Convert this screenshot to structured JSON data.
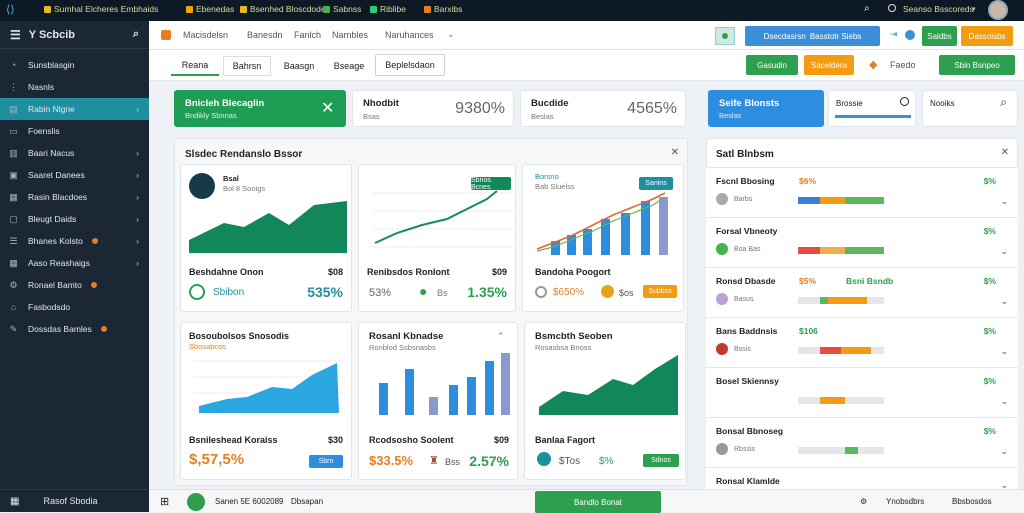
{
  "topbar": {
    "tabs": [
      {
        "label": "Sumhal Elcheres Embhaids",
        "color": "#e8b923"
      },
      {
        "label": "Ebenedas",
        "color": "#f0a500"
      },
      {
        "label": "Bsenhed Bloscdodes",
        "color": "#e8b923"
      },
      {
        "label": "Sabnss",
        "color": "#48b04a"
      },
      {
        "label": "Riblibe",
        "color": "#2ecc71"
      },
      {
        "label": "Barxibs",
        "color": "#e67e22"
      }
    ],
    "user_label": "Seanso Bsscoreds"
  },
  "sidebar": {
    "brand": "Y Scbcib",
    "items": [
      {
        "label": "Sunsblasgin",
        "icon": "dashboard-icon",
        "chev": false
      },
      {
        "label": "Nasnls",
        "icon": "nodes-icon",
        "chev": false
      },
      {
        "label": "Rabin Nlgne",
        "icon": "list-icon",
        "chev": true,
        "active": true
      },
      {
        "label": "Foenslis",
        "icon": "file-icon",
        "chev": false
      },
      {
        "label": "Baari Nacus",
        "icon": "chart-icon",
        "chev": true
      },
      {
        "label": "Saaret Danees",
        "icon": "folder-icon",
        "chev": true
      },
      {
        "label": "Rasin Blacdoes",
        "icon": "grid-icon",
        "chev": true
      },
      {
        "label": "Bleugt Daids",
        "icon": "book-icon",
        "chev": true
      },
      {
        "label": "Bhanes Kolsto",
        "icon": "people-icon",
        "chev": true,
        "dot": true
      },
      {
        "label": "Aaso Reashaigs",
        "icon": "table-icon",
        "chev": true
      },
      {
        "label": "Ronael Bamto",
        "icon": "settings-icon",
        "chev": false,
        "dot": true
      },
      {
        "label": "Fasbodsdo",
        "icon": "home-icon",
        "chev": false
      },
      {
        "label": "Dossdas Bamles",
        "icon": "tool-icon",
        "chev": false,
        "dot": true
      }
    ],
    "footer": "Rasof Sbodia"
  },
  "header": {
    "menu": [
      "Macisdelsn",
      "Banesdn",
      "Fanlch",
      "Narnbles",
      "Naruhances"
    ],
    "btn1": "Dsecdasrsn",
    "btn1_b": "Basstotr Siebs",
    "btn2": "Saldbs",
    "btn3": "Dassoisbs"
  },
  "subbar": {
    "tabs": [
      "Reana",
      "Bahrsn",
      "Baasgn",
      "Bseage",
      "Beplelsdaon"
    ],
    "btn1": "Gasudin",
    "btn2": "Saceldera",
    "btn3": "Faedo",
    "btn4": "Sbin Bsnpeo"
  },
  "kpi": {
    "k1_title": "Bnicleh Blecaglin",
    "k1_sub": "Bndikly Sbnnas",
    "k2_title": "Nhodbit",
    "k2_sub": "Bsas",
    "k2_val": "9380%",
    "k3_title": "Bucdide",
    "k3_sub": "Beslas",
    "k3_val": "4565%",
    "k4_title": "Seife Blonsts",
    "k4_sub": "Beslas",
    "k5_title": "Brossie",
    "k6_title": "Nooiks"
  },
  "panel": {
    "title": "Slsdec Rendanslo Bssor"
  },
  "cards": [
    {
      "title": "Bsal",
      "sub": "Bol 8 Sooigs",
      "foot_label": "Beshdahne Onon",
      "foot_num": "$08",
      "sub2": "Sbibon",
      "pct": "535%"
    },
    {
      "title": "",
      "sub": "",
      "pill": "Sbnos Bcnes",
      "foot_label": "Renibsdos Ronlont",
      "foot_num": "$09",
      "p1": "53%",
      "p2": "Bs",
      "pct": "1.35%"
    },
    {
      "title": "Borsno",
      "sub": "Bab Sluelss",
      "pill": "Sanins",
      "foot_label": "Bandoha Poogort",
      "p1": "$650%",
      "p2": "$os",
      "pill2": "Subbss"
    },
    {
      "title": "Bosoubolsos Snosodis",
      "sub": "Sbosabcos",
      "foot_label": "Bsnileshead Koraiss",
      "foot_num": "$30",
      "val": "$,57,5%",
      "pill": "Sbrn"
    },
    {
      "title": "Rosanl Kbnadse",
      "sub": "Ronblod Ssbsnasbs",
      "foot_label": "Rcodsosho Soolent",
      "foot_num": "$09",
      "val": "$33.5%",
      "p2": "Bss",
      "pct": "2.57%"
    },
    {
      "title": "Bsmcbth Seoben",
      "sub": "Rosasbsa Bnoss",
      "foot_label": "Banlaa Fagort",
      "p1": "$Tos",
      "p2": "$%",
      "pill": "Sdnos"
    }
  ],
  "side": {
    "title": "Satl Blnbsm",
    "rows": [
      {
        "name": "Fscnl Bbosing",
        "pct": "$6%",
        "rv": "$%",
        "sub": "Barbs",
        "av": "#aaa",
        "bars": [
          [
            "#3b7dd8",
            25
          ],
          [
            "#f39c12",
            30
          ],
          [
            "#5cb85c",
            45
          ]
        ]
      },
      {
        "name": "Forsal Vbneoty",
        "pct": "",
        "rv": "$%",
        "sub": "Boa Bas",
        "av": "#48b04a",
        "bars": [
          [
            "#e74c3c",
            25
          ],
          [
            "#f0ad4e",
            30
          ],
          [
            "#5cb85c",
            45
          ]
        ]
      },
      {
        "name": "Ronsd Dbasde",
        "pct": "$5%",
        "rv": "$%",
        "sub": "Basus",
        "av": "#b7a3d6",
        "bars": [
          [
            "#e3e6ea",
            25
          ],
          [
            "#5cb85c",
            10
          ],
          [
            "#f39c12",
            45
          ]
        ],
        "extra": "Bsni Bsndb"
      },
      {
        "name": "Bans Baddnsis",
        "pct": "$106",
        "rv": "$%",
        "sub": "Bssis",
        "av": "#c0392b",
        "bars": [
          [
            "#e3e6ea",
            25
          ],
          [
            "#e74c3c",
            25
          ],
          [
            "#f39c12",
            35
          ]
        ]
      },
      {
        "name": "Bosel Skiennsy",
        "pct": "",
        "rv": "$%",
        "sub": "",
        "av": "",
        "bars": [
          [
            "#e3e6ea",
            25
          ],
          [
            "#f39c12",
            30
          ],
          [
            "#e3e6ea",
            45
          ]
        ]
      },
      {
        "name": "Bonsal Bbnoseg",
        "pct": "",
        "rv": "$%",
        "sub": "Rbssis",
        "av": "#999",
        "bars": [
          [
            "#e3e6ea",
            55
          ],
          [
            "#5cb85c",
            15
          ],
          [
            "#e3e6ea",
            30
          ]
        ]
      },
      {
        "name": "Ronsal Klamlde",
        "pct": "",
        "rv": "",
        "sub": "",
        "av": "",
        "bars": []
      }
    ]
  },
  "bottom": {
    "b1": "Sanen 5E 6002089",
    "b2": "Dbsapan",
    "btn": "Bandlo Bonat",
    "r1": "Ynobsdbrs",
    "r2": "Bbsbosdos"
  }
}
